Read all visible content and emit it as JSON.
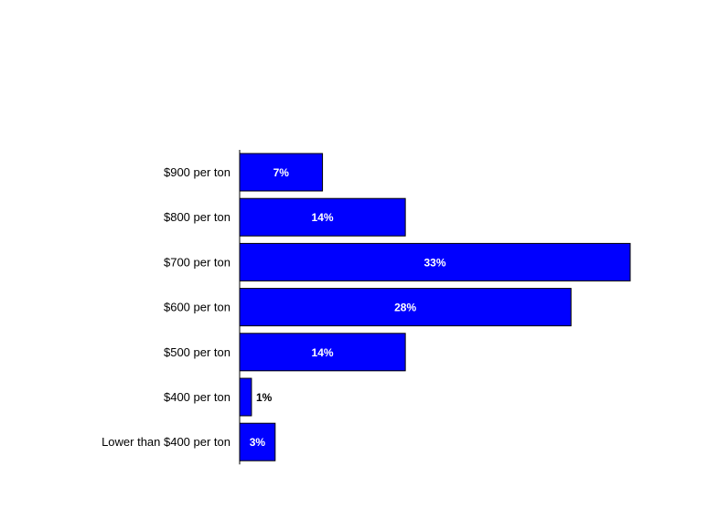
{
  "chart_data": {
    "type": "bar",
    "orientation": "horizontal",
    "categories": [
      "$900 per ton",
      "$800 per ton",
      "$700 per ton",
      "$600 per ton",
      "$500 per ton",
      "$400 per ton",
      "Lower than $400 per ton"
    ],
    "values": [
      7,
      14,
      33,
      28,
      14,
      1,
      3
    ],
    "data_labels": [
      "7%",
      "14%",
      "33%",
      "28%",
      "14%",
      "1%",
      "3%"
    ],
    "title": "",
    "xlabel": "",
    "ylabel": "",
    "xlim": [
      0,
      33
    ],
    "grid": false,
    "legend": "none",
    "bar_color": "#0000FF",
    "label_color_inside": "#FFFFFF",
    "label_color_outside": "#000000"
  }
}
